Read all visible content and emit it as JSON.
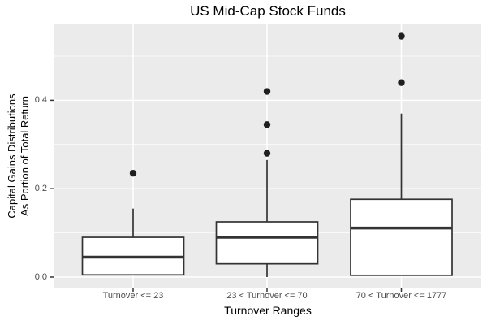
{
  "chart_data": {
    "type": "boxplot",
    "title": "US Mid-Cap Stock Funds",
    "xlabel": "Turnover Ranges",
    "ylabel_lines": [
      "Capital Gains Distributions",
      "As Portion of Total Return"
    ],
    "categories": [
      "Turnover <= 23",
      "23 < Turnover <= 70",
      "70 < Turnover <= 1777"
    ],
    "y_major_ticks": [
      0.0,
      0.2,
      0.4
    ],
    "y_tick_labels": [
      "0.0",
      "0.2",
      "0.4"
    ],
    "y_minor_ticks": [
      0.1,
      0.3,
      0.5
    ],
    "ylim": [
      -0.024,
      0.572
    ],
    "grid": true,
    "legend": false,
    "boxes": [
      {
        "category": "Turnover <= 23",
        "whisker_low": 0.005,
        "q1": 0.005,
        "median": 0.045,
        "q3": 0.09,
        "whisker_high": 0.155,
        "outliers": [
          0.235
        ]
      },
      {
        "category": "23 < Turnover <= 70",
        "whisker_low": 0.0,
        "q1": 0.03,
        "median": 0.09,
        "q3": 0.125,
        "whisker_high": 0.265,
        "outliers": [
          0.28,
          0.345,
          0.42
        ]
      },
      {
        "category": "70 < Turnover <= 1777",
        "whisker_low": 0.004,
        "q1": 0.004,
        "median": 0.111,
        "q3": 0.176,
        "whisker_high": 0.37,
        "outliers": [
          0.44,
          0.545
        ]
      }
    ],
    "colors": {
      "panel_bg": "#EBEBEB",
      "grid": "#FFFFFF",
      "box_fill": "#FFFFFF",
      "box_stroke": "#333333",
      "outlier": "#1F1F1F",
      "tick_mark": "#333333",
      "tick_label": "#4D4D4D",
      "text": "#000000"
    }
  }
}
